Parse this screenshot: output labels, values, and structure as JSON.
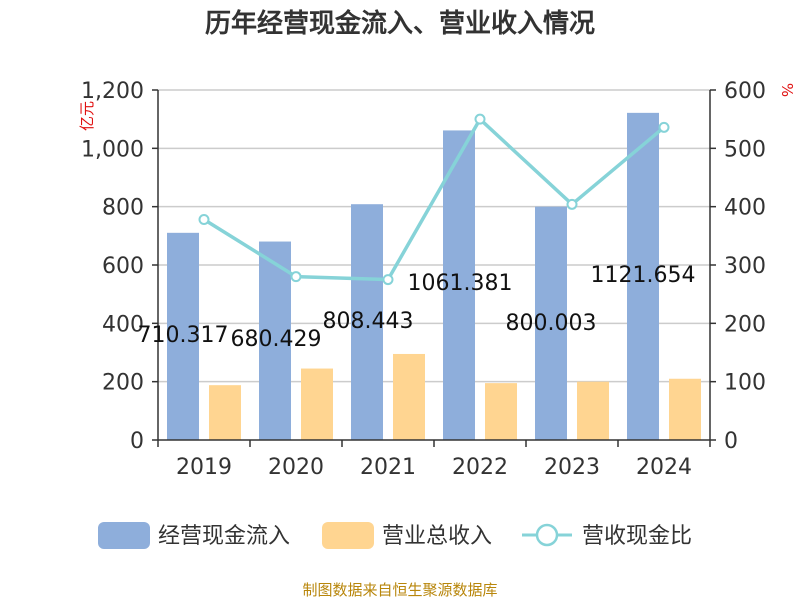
{
  "chart_data": {
    "type": "bar",
    "title": "历年经营现金流入、营业收入情况",
    "categories": [
      "2019",
      "2020",
      "2021",
      "2022",
      "2023",
      "2024"
    ],
    "series": [
      {
        "name": "经营现金流入",
        "type": "bar",
        "axis": "left",
        "color": "#8eaedb",
        "values": [
          710.317,
          680.429,
          808.443,
          1061.381,
          800.003,
          1121.654
        ],
        "labels": [
          "710.317",
          "680.429",
          "808.443",
          "1061.381",
          "800.003",
          "1121.654"
        ]
      },
      {
        "name": "营业总收入",
        "type": "bar",
        "axis": "left",
        "color": "#ffd591",
        "values": [
          188,
          245,
          295,
          195,
          200,
          210
        ]
      },
      {
        "name": "营收现金比",
        "type": "line",
        "axis": "right",
        "color": "#86d3d8",
        "values": [
          378,
          280,
          275,
          550,
          404,
          536
        ]
      }
    ],
    "ylabel": "亿元",
    "y2label": "%",
    "ylim": [
      0,
      1200
    ],
    "y2lim": [
      0,
      600
    ],
    "yticks": [
      "0",
      "200",
      "400",
      "600",
      "800",
      "1,000",
      "1,200"
    ],
    "y2ticks": [
      "0",
      "100",
      "200",
      "300",
      "400",
      "500",
      "600"
    ],
    "grid": true,
    "legend": "bottom",
    "source": "制图数据来自恒生聚源数据库"
  }
}
